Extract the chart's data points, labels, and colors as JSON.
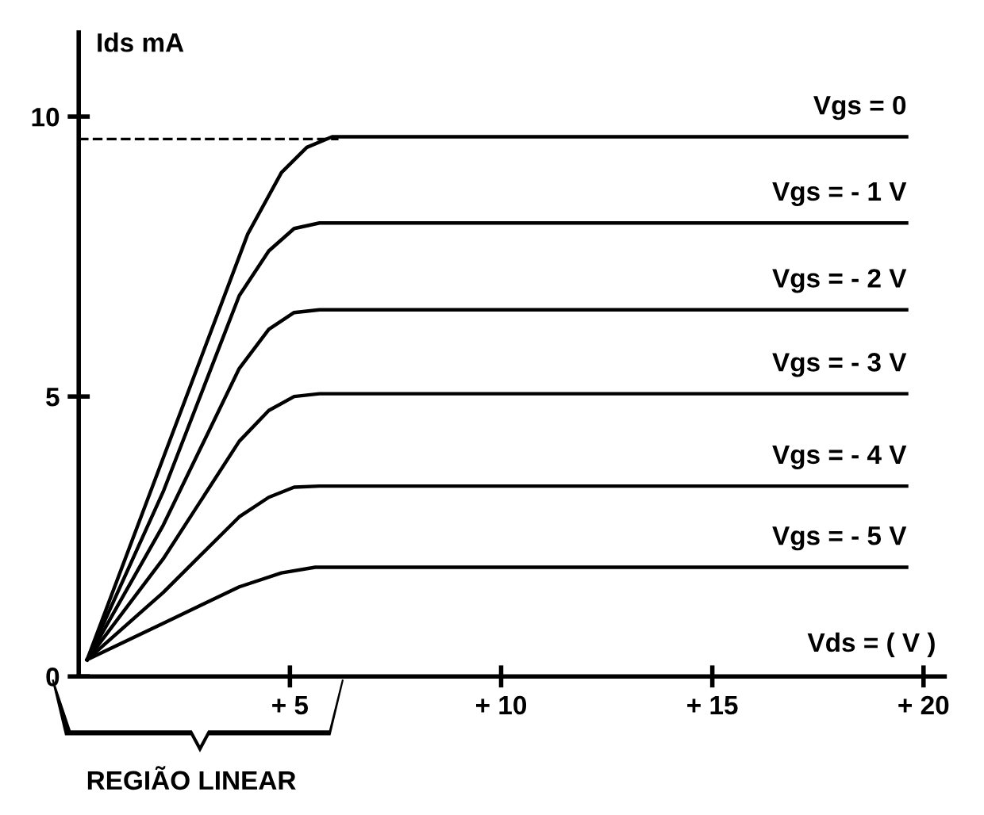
{
  "chart_data": {
    "type": "line",
    "xlabel": "Vds = ( V )",
    "ylabel": "Ids mA",
    "xlim": [
      0,
      20.5
    ],
    "ylim": [
      0,
      11.5
    ],
    "xticks": [
      {
        "value": 5,
        "label": "+ 5"
      },
      {
        "value": 10,
        "label": "+ 10"
      },
      {
        "value": 15,
        "label": "+ 15"
      },
      {
        "value": 20,
        "label": "+ 20"
      }
    ],
    "yticks": [
      0,
      5,
      10
    ],
    "grid": false,
    "marker": "none",
    "line_style": "solid",
    "ref_lines": [
      {
        "axis": "y",
        "value": 9.6,
        "line_style": "dashed",
        "color": "#000000"
      }
    ],
    "annotations": [
      "REGIÃO LINEAR"
    ],
    "series": [
      {
        "name": "Vgs = 0",
        "color": "#000000",
        "x": [
          0.2,
          2,
          4,
          4.8,
          5.4,
          6,
          19.6
        ],
        "values": [
          0.3,
          3.9,
          7.9,
          9.0,
          9.45,
          9.64,
          9.64
        ]
      },
      {
        "name": "Vgs = - 1 V",
        "color": "#000000",
        "x": [
          0.2,
          2,
          3.8,
          4.5,
          5.1,
          5.7,
          19.6
        ],
        "values": [
          0.3,
          3.3,
          6.8,
          7.6,
          8.0,
          8.1,
          8.1
        ]
      },
      {
        "name": "Vgs = - 2 V",
        "color": "#000000",
        "x": [
          0.2,
          2,
          3.8,
          4.5,
          5.1,
          5.7,
          19.6
        ],
        "values": [
          0.3,
          2.7,
          5.5,
          6.2,
          6.5,
          6.55,
          6.55
        ]
      },
      {
        "name": "Vgs = - 3 V",
        "color": "#000000",
        "x": [
          0.2,
          2,
          3.8,
          4.5,
          5.1,
          5.7,
          19.6
        ],
        "values": [
          0.3,
          2.1,
          4.2,
          4.75,
          5.0,
          5.05,
          5.05
        ]
      },
      {
        "name": "Vgs = - 4 V",
        "color": "#000000",
        "x": [
          0.2,
          2,
          3.8,
          4.5,
          5.1,
          5.7,
          19.6
        ],
        "values": [
          0.3,
          1.5,
          2.85,
          3.2,
          3.38,
          3.4,
          3.4
        ]
      },
      {
        "name": "Vgs = - 5 V",
        "color": "#000000",
        "x": [
          0.2,
          2,
          3.8,
          4.8,
          5.6,
          19.6
        ],
        "values": [
          0.3,
          0.95,
          1.6,
          1.85,
          1.95,
          1.95
        ]
      }
    ]
  }
}
